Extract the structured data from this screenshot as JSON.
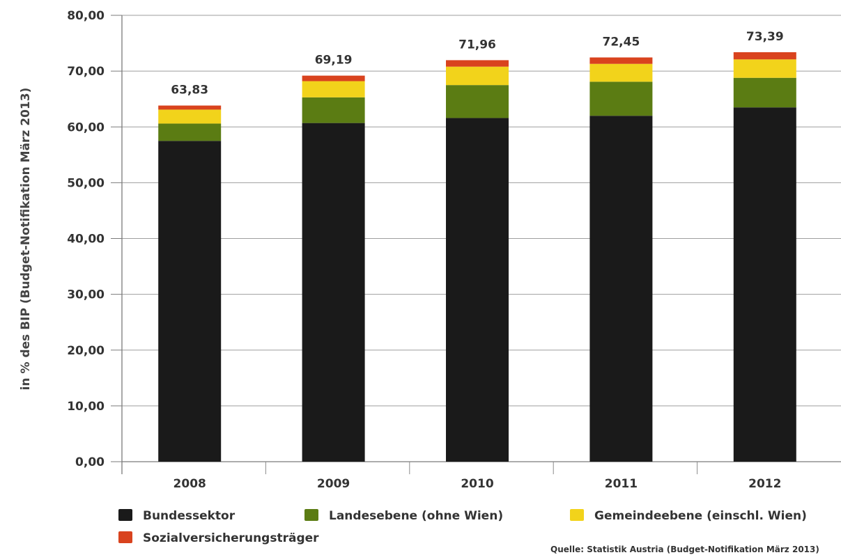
{
  "chart_data": {
    "type": "bar",
    "stacked": true,
    "categories": [
      "2008",
      "2009",
      "2010",
      "2011",
      "2012"
    ],
    "series": [
      {
        "name": "Bundessektor",
        "color": "#1a1a1a",
        "values": [
          57.5,
          60.7,
          61.6,
          62.0,
          63.5
        ]
      },
      {
        "name": "Landesebene (ohne Wien)",
        "color": "#5b7c13",
        "values": [
          3.1,
          4.6,
          5.9,
          6.1,
          5.3
        ]
      },
      {
        "name": "Gemeindeebene (einschl. Wien)",
        "color": "#f2d31b",
        "values": [
          2.5,
          2.9,
          3.3,
          3.2,
          3.3
        ]
      },
      {
        "name": "Sozialversicherungsträger",
        "color": "#d9431e",
        "values": [
          0.73,
          0.99,
          1.16,
          1.15,
          1.29
        ]
      }
    ],
    "totals": [
      "63,83",
      "69,19",
      "71,96",
      "72,45",
      "73,39"
    ],
    "ylabel": "in % des BIP (Budget-Notifikation März 2013)",
    "ylim": [
      0,
      80
    ],
    "yticks": [
      "0,00",
      "10,00",
      "20,00",
      "30,00",
      "40,00",
      "50,00",
      "60,00",
      "70,00",
      "80,00"
    ],
    "grid": true,
    "legend_position": "bottom",
    "source": "Quelle: Statistik Austria (Budget-Notifikation März 2013)"
  }
}
